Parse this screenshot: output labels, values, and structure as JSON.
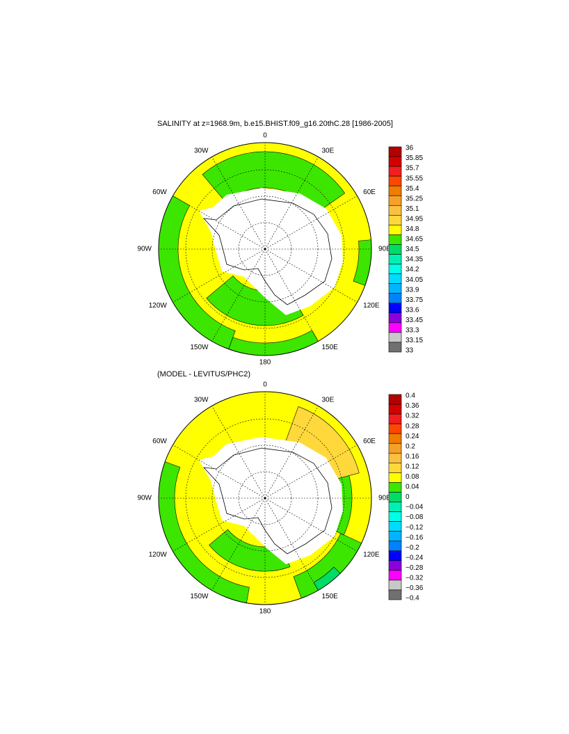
{
  "panels": [
    {
      "title": "SALINITY at z=1968.9m, b.e15.BHIST.f09_g16.20thC.28 [1986-2005]",
      "lon_labels": [
        "0",
        "30E",
        "60E",
        "90E",
        "120E",
        "150E",
        "180",
        "150W",
        "120W",
        "90W",
        "60W",
        "30W"
      ],
      "colorbar": {
        "labels": [
          "36",
          "35.85",
          "35.7",
          "35.55",
          "35.4",
          "35.25",
          "35.1",
          "34.95",
          "34.8",
          "34.65",
          "34.5",
          "34.35",
          "34.2",
          "34.05",
          "33.9",
          "33.75",
          "33.6",
          "33.45",
          "33.3",
          "33.15",
          "33"
        ],
        "colors": [
          "#b40000",
          "#d20000",
          "#f01e1e",
          "#ff4600",
          "#f07c00",
          "#f5a028",
          "#fac040",
          "#ffd83c",
          "#ffff00",
          "#3ce600",
          "#00dc64",
          "#00f0b4",
          "#00ffe6",
          "#00dcff",
          "#00b4ff",
          "#0082ff",
          "#0000ff",
          "#8c00dc",
          "#ff00ff",
          "#c8c8c8",
          "#707070"
        ]
      }
    },
    {
      "title": "(MODEL - LEVITUS/PHC2)",
      "lon_labels": [
        "0",
        "30E",
        "60E",
        "90E",
        "120E",
        "150E",
        "180",
        "150W",
        "120W",
        "90W",
        "60W",
        "30W"
      ],
      "colorbar": {
        "labels": [
          "0.4",
          "0.36",
          "0.32",
          "0.28",
          "0.24",
          "0.2",
          "0.16",
          "0.12",
          "0.08",
          "0.04",
          "0",
          "−0.04",
          "−0.08",
          "−0.12",
          "−0.16",
          "−0.2",
          "−0.24",
          "−0.28",
          "−0.32",
          "−0.36",
          "−0.4"
        ],
        "colors": [
          "#b40000",
          "#d20000",
          "#f01e1e",
          "#ff4600",
          "#f07c00",
          "#f5a028",
          "#fac040",
          "#ffd83c",
          "#ffff00",
          "#3ce600",
          "#00dc64",
          "#00f0b4",
          "#00ffe6",
          "#00dcff",
          "#00b4ff",
          "#0082ff",
          "#0000ff",
          "#8c00dc",
          "#ff00ff",
          "#c8c8c8",
          "#707070"
        ]
      }
    }
  ]
}
